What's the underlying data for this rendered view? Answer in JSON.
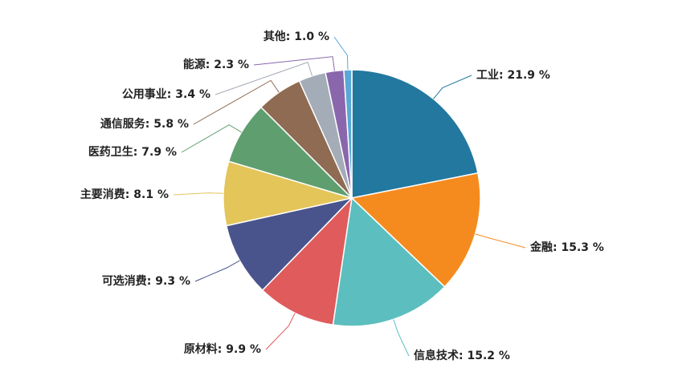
{
  "chart_data": {
    "type": "pie",
    "values": [
      21.9,
      15.3,
      15.2,
      9.9,
      9.3,
      8.1,
      7.9,
      5.8,
      3.4,
      2.3,
      1.0
    ],
    "value_labels": [
      "工业: 21.9 %",
      "金融: 15.3 %",
      "信息技术: 15.2 %",
      "原材料: 9.9 %",
      "可选消费: 9.3 %",
      "主要消费: 8.1 %",
      "医药卫生: 7.9 %",
      "通信服务: 5.8 %",
      "公用事业: 3.4 %",
      "能源: 2.3 %",
      "其他: 1.0 %"
    ],
    "colors": [
      "#23789f",
      "#f58b1f",
      "#5cbebe",
      "#e05b5c",
      "#4a548c",
      "#e4c55a",
      "#5f9f6f",
      "#8e6b52",
      "#a3acb7",
      "#8a67ac",
      "#5aa8d6"
    ]
  }
}
